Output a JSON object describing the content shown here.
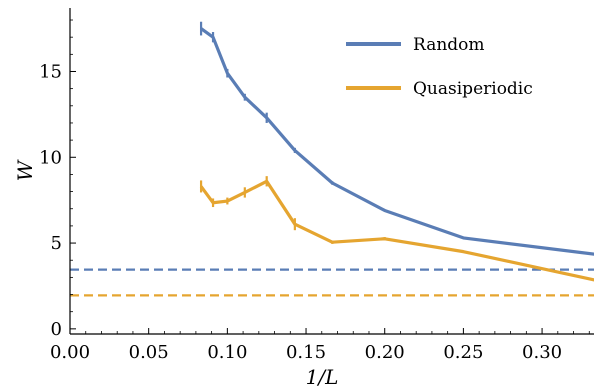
{
  "chart_data": {
    "type": "line",
    "xlabel": "1/L",
    "ylabel": "W",
    "xlim": [
      0.0,
      0.333
    ],
    "ylim": [
      -0.3,
      18.7
    ],
    "x_ticks": [
      0.0,
      0.05,
      0.1,
      0.15,
      0.2,
      0.25,
      0.3
    ],
    "x_tick_labels": [
      "0.00",
      "0.05",
      "0.10",
      "0.15",
      "0.20",
      "0.25",
      "0.30"
    ],
    "y_ticks": [
      0,
      5,
      10,
      15
    ],
    "y_tick_labels": [
      "0",
      "5",
      "10",
      "15"
    ],
    "grid": false,
    "legend_position": "top-right",
    "series": [
      {
        "name": "Random",
        "color": "#5a7db5",
        "x": [
          0.0833,
          0.0909,
          0.1,
          0.1111,
          0.125,
          0.1429,
          0.1667,
          0.2,
          0.25,
          0.3333
        ],
        "y": [
          17.5,
          17.0,
          14.9,
          13.5,
          12.3,
          10.4,
          8.5,
          6.9,
          5.3,
          4.35
        ],
        "yerr": [
          0.4,
          0.3,
          0.25,
          0.2,
          0.3,
          0.15,
          0.1,
          0.05,
          0.05,
          0.05
        ]
      },
      {
        "name": "Quasiperiodic",
        "color": "#e5a530",
        "x": [
          0.0833,
          0.0909,
          0.1,
          0.1111,
          0.125,
          0.1429,
          0.1667,
          0.2,
          0.25,
          0.3333
        ],
        "y": [
          8.3,
          7.35,
          7.45,
          7.95,
          8.6,
          6.1,
          5.05,
          5.25,
          4.5,
          2.85
        ],
        "yerr": [
          0.35,
          0.25,
          0.2,
          0.3,
          0.3,
          0.35,
          0.1,
          0.1,
          0.05,
          0.05
        ]
      }
    ],
    "reference_lines": [
      {
        "orientation": "horizontal",
        "y": 3.45,
        "color": "#5a7db5",
        "style": "dashed"
      },
      {
        "orientation": "horizontal",
        "y": 1.95,
        "color": "#e5a530",
        "style": "dashed"
      }
    ]
  }
}
